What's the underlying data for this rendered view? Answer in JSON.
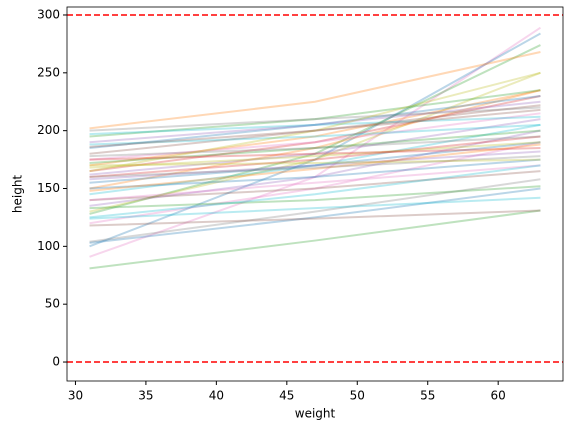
{
  "chart_data": {
    "type": "line",
    "xlabel": "weight",
    "ylabel": "height",
    "x": [
      31,
      47,
      63
    ],
    "xlim": [
      29.4,
      64.6
    ],
    "ylim": [
      -16.4,
      306.9
    ],
    "xticks": [
      30,
      35,
      40,
      45,
      50,
      55,
      60
    ],
    "yticks": [
      0,
      50,
      100,
      150,
      200,
      250,
      300
    ],
    "alpha": 0.3,
    "hlines": {
      "values": [
        0,
        300
      ],
      "color": "#ff0000"
    },
    "series": [
      {
        "color": "#2ca02c",
        "values": [
          81,
          105,
          131
        ]
      },
      {
        "color": "#e377c2",
        "values": [
          91,
          160,
          289
        ]
      },
      {
        "color": "#1f77b4",
        "values": [
          100,
          175,
          284
        ]
      },
      {
        "color": "#7f7f7f",
        "values": [
          104,
          130,
          158
        ]
      },
      {
        "color": "#1f77b4",
        "values": [
          103,
          125,
          150
        ]
      },
      {
        "color": "#e377c2",
        "values": [
          120,
          150,
          190
        ]
      },
      {
        "color": "#17becf",
        "values": [
          124,
          133,
          142
        ]
      },
      {
        "color": "#2ca02c",
        "values": [
          128,
          180,
          274
        ]
      },
      {
        "color": "#bcbd22",
        "values": [
          130,
          175,
          250
        ]
      },
      {
        "color": "#9467bd",
        "values": [
          135,
          160,
          200
        ]
      },
      {
        "color": "#8c564b",
        "values": [
          140,
          150,
          165
        ]
      },
      {
        "color": "#8c564b",
        "values": [
          118,
          124,
          131
        ]
      },
      {
        "color": "#17becf",
        "values": [
          145,
          170,
          205
        ]
      },
      {
        "color": "#ff7f0e",
        "values": [
          150,
          185,
          235
        ]
      },
      {
        "color": "#1f77b4",
        "values": [
          155,
          170,
          190
        ]
      },
      {
        "color": "#d62728",
        "values": [
          160,
          175,
          195
        ]
      },
      {
        "color": "#9467bd",
        "values": [
          162,
          180,
          210
        ]
      },
      {
        "color": "#d62728",
        "values": [
          165,
          190,
          230
        ]
      },
      {
        "color": "#bcbd22",
        "values": [
          168,
          178,
          190
        ]
      },
      {
        "color": "#ff7f0e",
        "values": [
          170,
          195,
          235
        ]
      },
      {
        "color": "#2ca02c",
        "values": [
          172,
          185,
          200
        ]
      },
      {
        "color": "#e377c2",
        "values": [
          175,
          190,
          215
        ]
      },
      {
        "color": "#7f7f7f",
        "values": [
          178,
          185,
          195
        ]
      },
      {
        "color": "#8c564b",
        "values": [
          180,
          200,
          222
        ]
      },
      {
        "color": "#1f77b4",
        "values": [
          185,
          205,
          230
        ]
      },
      {
        "color": "#17becf",
        "values": [
          188,
          195,
          205
        ]
      },
      {
        "color": "#9467bd",
        "values": [
          190,
          205,
          225
        ]
      },
      {
        "color": "#2ca02c",
        "values": [
          195,
          210,
          235
        ]
      },
      {
        "color": "#7f7f7f",
        "values": [
          200,
          210,
          220
        ]
      },
      {
        "color": "#ff7f0e",
        "values": [
          202,
          225,
          268
        ]
      },
      {
        "color": "#17becf",
        "values": [
          197,
          205,
          212
        ]
      },
      {
        "color": "#bcbd22",
        "values": [
          165,
          200,
          250
        ]
      },
      {
        "color": "#1f77b4",
        "values": [
          150,
          160,
          175
        ]
      },
      {
        "color": "#e377c2",
        "values": [
          140,
          155,
          170
        ]
      },
      {
        "color": "#2ca02c",
        "values": [
          133,
          140,
          152
        ]
      },
      {
        "color": "#d62728",
        "values": [
          175,
          180,
          185
        ]
      },
      {
        "color": "#9467bd",
        "values": [
          158,
          170,
          182
        ]
      },
      {
        "color": "#8c564b",
        "values": [
          186,
          200,
          218
        ]
      },
      {
        "color": "#17becf",
        "values": [
          125,
          145,
          170
        ]
      },
      {
        "color": "#ff7f0e",
        "values": [
          148,
          167,
          188
        ]
      },
      {
        "color": "#7f7f7f",
        "values": [
          160,
          168,
          178
        ]
      },
      {
        "color": "#bcbd22",
        "values": [
          170,
          172,
          175
        ]
      }
    ]
  }
}
